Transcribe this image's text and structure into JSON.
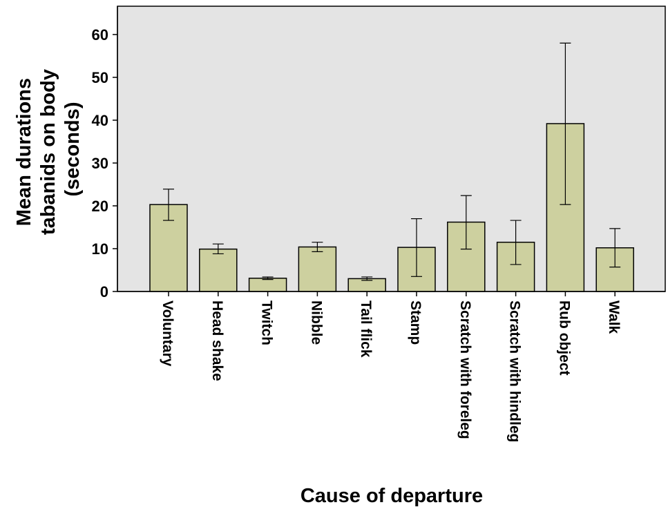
{
  "chart_data": {
    "type": "bar",
    "title": "",
    "xlabel": "Cause of departure",
    "ylabel_lines": [
      "Mean durations",
      "tabanids on body",
      "(seconds)"
    ],
    "ylim": [
      0,
      66
    ],
    "yticks": [
      0,
      10,
      20,
      30,
      40,
      50,
      60
    ],
    "grid": false,
    "categories": [
      "Voluntary",
      "Head shake",
      "Twitch",
      "Nibble",
      "Tail flick",
      "Stamp",
      "Scratch with foreleg",
      "Scratch with hindleg",
      "Rub object",
      "Walk"
    ],
    "values": [
      20.3,
      9.9,
      3.1,
      10.4,
      3.0,
      10.3,
      16.2,
      11.5,
      39.2,
      10.2
    ],
    "error_low": [
      16.6,
      8.8,
      2.8,
      9.3,
      2.6,
      3.5,
      9.9,
      6.3,
      20.3,
      5.7
    ],
    "error_high": [
      23.9,
      11.1,
      3.4,
      11.5,
      3.4,
      17.0,
      22.4,
      16.6,
      58.0,
      14.7
    ],
    "colors": {
      "bar_fill": "#cdd09f",
      "bar_stroke": "#000000",
      "plot_bg": "#e4e4e4"
    }
  }
}
